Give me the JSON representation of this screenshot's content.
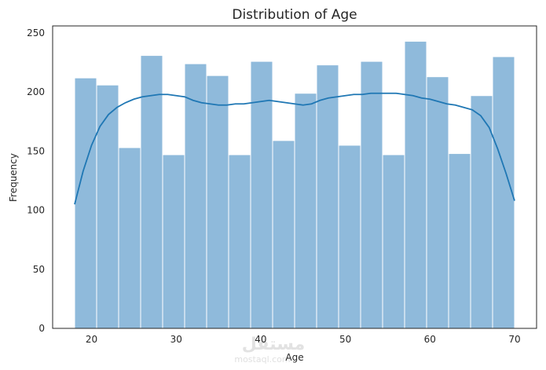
{
  "watermark": {
    "arabic": "مستقل",
    "latin": "mostaql.com"
  },
  "chart_data": {
    "type": "bar",
    "title": "Distribution of Age",
    "xlabel": "Age",
    "ylabel": "Frequency",
    "xlim": [
      15.4,
      72.6
    ],
    "ylim": [
      0,
      256
    ],
    "xticks": [
      20,
      30,
      40,
      50,
      60,
      70
    ],
    "yticks": [
      0,
      50,
      100,
      150,
      200,
      250
    ],
    "grid": false,
    "bin_edges": [
      18,
      20.6,
      23.2,
      25.8,
      28.4,
      31,
      33.6,
      36.2,
      38.8,
      41.4,
      44,
      46.6,
      49.2,
      51.8,
      54.4,
      57,
      59.6,
      62.2,
      64.8,
      67.4,
      70
    ],
    "values": [
      212,
      206,
      153,
      231,
      147,
      224,
      214,
      147,
      226,
      159,
      199,
      223,
      155,
      226,
      147,
      243,
      213,
      148,
      197,
      230
    ],
    "bar_color": "#8fbadb",
    "kde": {
      "color": "#1f77b4",
      "x": [
        18,
        19,
        20,
        21,
        22,
        23,
        24,
        25,
        26,
        27,
        28,
        29,
        30,
        31,
        32,
        33,
        34,
        35,
        36,
        37,
        38,
        39,
        40,
        41,
        42,
        43,
        44,
        45,
        46,
        47,
        48,
        49,
        50,
        51,
        52,
        53,
        54,
        55,
        56,
        57,
        58,
        59,
        60,
        61,
        62,
        63,
        64,
        65,
        66,
        67,
        68,
        69,
        70
      ],
      "y": [
        105,
        133,
        155,
        171,
        181,
        187,
        191,
        194,
        196,
        197,
        198,
        198,
        197,
        196,
        193,
        191,
        190,
        189,
        189,
        190,
        190,
        191,
        192,
        193,
        192,
        191,
        190,
        189,
        190,
        193,
        195,
        196,
        197,
        198,
        198,
        199,
        199,
        199,
        199,
        198,
        197,
        195,
        194,
        192,
        190,
        189,
        187,
        185,
        180,
        170,
        152,
        131,
        108
      ]
    }
  }
}
